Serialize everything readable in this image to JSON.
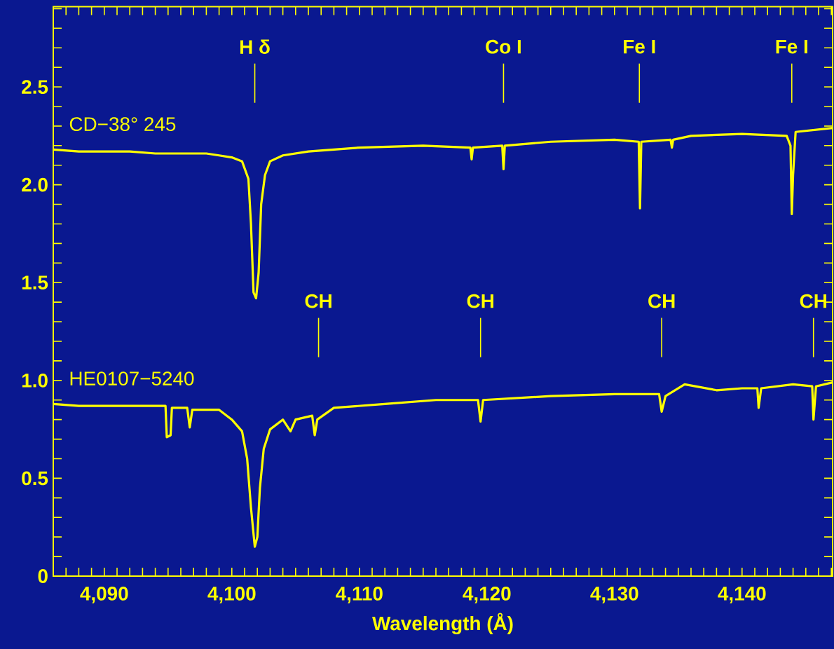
{
  "chart_data": {
    "type": "line",
    "xlabel": "Wavelength (Å)",
    "xlim": [
      4086,
      4147.1
    ],
    "ylim": [
      0,
      2.91
    ],
    "xticks": [
      {
        "value": 4087,
        "label": null
      },
      {
        "value": 4088,
        "label": null
      },
      {
        "value": 4089,
        "label": null
      },
      {
        "value": 4090,
        "label": "4,090"
      },
      {
        "value": 4091,
        "label": null
      },
      {
        "value": 4092,
        "label": null
      },
      {
        "value": 4093,
        "label": null
      },
      {
        "value": 4094,
        "label": null
      },
      {
        "value": 4095,
        "label": null
      },
      {
        "value": 4096,
        "label": null
      },
      {
        "value": 4097,
        "label": null
      },
      {
        "value": 4098,
        "label": null
      },
      {
        "value": 4099,
        "label": null
      },
      {
        "value": 4100,
        "label": "4,100"
      },
      {
        "value": 4101,
        "label": null
      },
      {
        "value": 4102,
        "label": null
      },
      {
        "value": 4103,
        "label": null
      },
      {
        "value": 4104,
        "label": null
      },
      {
        "value": 4105,
        "label": null
      },
      {
        "value": 4106,
        "label": null
      },
      {
        "value": 4107,
        "label": null
      },
      {
        "value": 4108,
        "label": null
      },
      {
        "value": 4109,
        "label": null
      },
      {
        "value": 4110,
        "label": "4,110"
      },
      {
        "value": 4111,
        "label": null
      },
      {
        "value": 4112,
        "label": null
      },
      {
        "value": 4113,
        "label": null
      },
      {
        "value": 4114,
        "label": null
      },
      {
        "value": 4115,
        "label": null
      },
      {
        "value": 4116,
        "label": null
      },
      {
        "value": 4117,
        "label": null
      },
      {
        "value": 4118,
        "label": null
      },
      {
        "value": 4119,
        "label": null
      },
      {
        "value": 4120,
        "label": "4,120"
      },
      {
        "value": 4121,
        "label": null
      },
      {
        "value": 4122,
        "label": null
      },
      {
        "value": 4123,
        "label": null
      },
      {
        "value": 4124,
        "label": null
      },
      {
        "value": 4125,
        "label": null
      },
      {
        "value": 4126,
        "label": null
      },
      {
        "value": 4127,
        "label": null
      },
      {
        "value": 4128,
        "label": null
      },
      {
        "value": 4129,
        "label": null
      },
      {
        "value": 4130,
        "label": "4,130"
      },
      {
        "value": 4131,
        "label": null
      },
      {
        "value": 4132,
        "label": null
      },
      {
        "value": 4133,
        "label": null
      },
      {
        "value": 4134,
        "label": null
      },
      {
        "value": 4135,
        "label": null
      },
      {
        "value": 4136,
        "label": null
      },
      {
        "value": 4137,
        "label": null
      },
      {
        "value": 4138,
        "label": null
      },
      {
        "value": 4139,
        "label": null
      },
      {
        "value": 4140,
        "label": "4,140"
      },
      {
        "value": 4141,
        "label": null
      },
      {
        "value": 4142,
        "label": null
      },
      {
        "value": 4143,
        "label": null
      },
      {
        "value": 4144,
        "label": null
      },
      {
        "value": 4145,
        "label": null
      },
      {
        "value": 4146,
        "label": null
      },
      {
        "value": 4147,
        "label": null
      }
    ],
    "yticks": [
      0,
      {
        "value": 0.1,
        "label": null
      },
      {
        "value": 0.2,
        "label": null
      },
      {
        "value": 0.3,
        "label": null
      },
      {
        "value": 0.4,
        "label": null
      },
      0.5,
      {
        "value": 0.6,
        "label": null
      },
      {
        "value": 0.7,
        "label": null
      },
      {
        "value": 0.8,
        "label": null
      },
      {
        "value": 0.9,
        "label": null
      },
      {
        "value": 1.0,
        "label": "1.0"
      },
      {
        "value": 1.1,
        "label": null
      },
      {
        "value": 1.2,
        "label": null
      },
      {
        "value": 1.3,
        "label": null
      },
      {
        "value": 1.4,
        "label": null
      },
      1.5,
      {
        "value": 1.6,
        "label": null
      },
      {
        "value": 1.7,
        "label": null
      },
      {
        "value": 1.8,
        "label": null
      },
      {
        "value": 1.9,
        "label": null
      },
      {
        "value": 2.0,
        "label": "2.0"
      },
      {
        "value": 2.1,
        "label": null
      },
      {
        "value": 2.2,
        "label": null
      },
      {
        "value": 2.3,
        "label": null
      },
      {
        "value": 2.4,
        "label": null
      },
      2.5,
      {
        "value": 2.6,
        "label": null
      },
      {
        "value": 2.7,
        "label": null
      },
      {
        "value": 2.8,
        "label": null
      },
      {
        "value": 2.9,
        "label": null
      }
    ],
    "marker": "none",
    "line_style": "solid",
    "legend": "left",
    "series": [
      {
        "name": "CD−38° 245",
        "color": "#ffff00",
        "x": [
          4086,
          4088,
          4090,
          4092,
          4094,
          4096,
          4098,
          4099,
          4100,
          4100.8,
          4101.3,
          4101.5,
          4101.7,
          4101.9,
          4102.1,
          4102.3,
          4102.6,
          4103,
          4104,
          4106,
          4110,
          4115,
          4118.7,
          4118.8,
          4118.9,
          4121.2,
          4121.3,
          4121.4,
          4125,
          4130,
          4131.9,
          4132.0,
          4132.1,
          4134.4,
          4134.5,
          4134.6,
          4136,
          4140,
          4143.5,
          4143.8,
          4143.9,
          4144.0,
          4144.2,
          4147.1
        ],
        "values": [
          2.18,
          2.17,
          2.17,
          2.17,
          2.16,
          2.16,
          2.16,
          2.15,
          2.14,
          2.12,
          2.03,
          1.8,
          1.45,
          1.42,
          1.55,
          1.9,
          2.05,
          2.12,
          2.15,
          2.17,
          2.19,
          2.2,
          2.19,
          2.13,
          2.19,
          2.2,
          2.08,
          2.2,
          2.22,
          2.23,
          2.22,
          1.88,
          2.22,
          2.23,
          2.19,
          2.23,
          2.25,
          2.26,
          2.25,
          2.2,
          1.85,
          2.05,
          2.27,
          2.29
        ]
      },
      {
        "name": "HE0107−5240",
        "color": "#ffff00",
        "x": [
          4086,
          4088,
          4090,
          4092,
          4094,
          4094.8,
          4094.9,
          4095.2,
          4095.3,
          4096.5,
          4096.7,
          4096.9,
          4099,
          4100,
          4100.8,
          4101.2,
          4101.5,
          4101.8,
          4102.0,
          4102.2,
          4102.5,
          4103,
          4104,
          4104.6,
          4105,
          4106.3,
          4106.5,
          4106.7,
          4108,
          4112,
          4116,
          4119.3,
          4119.5,
          4119.7,
          4125,
          4130,
          4132,
          4133.5,
          4133.7,
          4134,
          4135.5,
          4138,
          4140,
          4141.2,
          4141.3,
          4141.5,
          4144,
          4145.5,
          4145.6,
          4145.8,
          4147.1
        ],
        "values": [
          0.88,
          0.87,
          0.87,
          0.87,
          0.87,
          0.87,
          0.71,
          0.72,
          0.86,
          0.86,
          0.76,
          0.85,
          0.85,
          0.8,
          0.74,
          0.6,
          0.35,
          0.15,
          0.2,
          0.45,
          0.65,
          0.75,
          0.8,
          0.74,
          0.8,
          0.82,
          0.72,
          0.8,
          0.86,
          0.88,
          0.9,
          0.9,
          0.79,
          0.9,
          0.92,
          0.93,
          0.93,
          0.93,
          0.84,
          0.92,
          0.98,
          0.95,
          0.96,
          0.96,
          0.86,
          0.96,
          0.98,
          0.97,
          0.8,
          0.97,
          0.99
        ]
      }
    ],
    "ref_lines": [
      {
        "axis": "x",
        "value": 4101.8,
        "label": "H δ"
      },
      {
        "axis": "x",
        "value": 4121.3,
        "label": "Co I"
      },
      {
        "axis": "x",
        "value": 4131.95,
        "label": "Fe I"
      },
      {
        "axis": "x",
        "value": 4143.9,
        "label": "Fe I"
      },
      {
        "axis": "x",
        "value": 4106.8,
        "label": "CH"
      },
      {
        "axis": "x",
        "value": 4119.5,
        "label": "CH"
      },
      {
        "axis": "x",
        "value": 4133.7,
        "label": "CH"
      },
      {
        "axis": "x",
        "value": 4145.6,
        "label": "CH"
      }
    ]
  }
}
